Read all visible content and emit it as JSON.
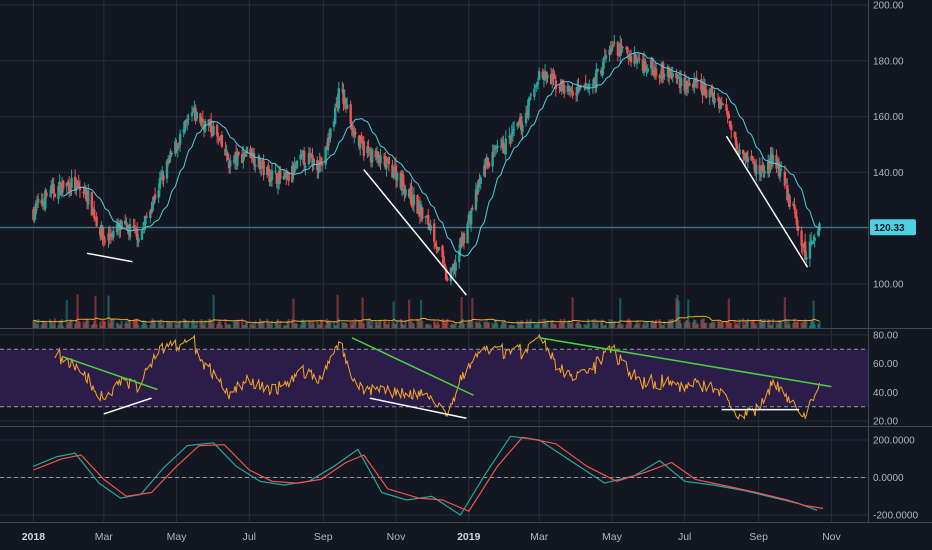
{
  "chart_data": [
    {
      "type": "candlestick",
      "panel": "price",
      "ylim": [
        92,
        200
      ],
      "yticks": [
        "200.00",
        "180.00",
        "160.00",
        "140.00",
        "120.00",
        "100.00"
      ],
      "last_price_label": "120.33",
      "last_price": 120.33,
      "series_close_approx": [
        {
          "x": "2018-01-01",
          "y": 126
        },
        {
          "x": "2018-01-15",
          "y": 133
        },
        {
          "x": "2018-02-01",
          "y": 136
        },
        {
          "x": "2018-02-15",
          "y": 132
        },
        {
          "x": "2018-03-01",
          "y": 116
        },
        {
          "x": "2018-03-15",
          "y": 120
        },
        {
          "x": "2018-04-01",
          "y": 118
        },
        {
          "x": "2018-04-15",
          "y": 134
        },
        {
          "x": "2018-05-01",
          "y": 150
        },
        {
          "x": "2018-05-15",
          "y": 161
        },
        {
          "x": "2018-06-01",
          "y": 155
        },
        {
          "x": "2018-06-15",
          "y": 143
        },
        {
          "x": "2018-07-01",
          "y": 148
        },
        {
          "x": "2018-07-15",
          "y": 140
        },
        {
          "x": "2018-08-01",
          "y": 137
        },
        {
          "x": "2018-08-15",
          "y": 145
        },
        {
          "x": "2018-09-01",
          "y": 143
        },
        {
          "x": "2018-09-15",
          "y": 170
        },
        {
          "x": "2018-10-01",
          "y": 150
        },
        {
          "x": "2018-10-15",
          "y": 145
        },
        {
          "x": "2018-11-01",
          "y": 140
        },
        {
          "x": "2018-11-15",
          "y": 130
        },
        {
          "x": "2018-12-01",
          "y": 120
        },
        {
          "x": "2018-12-15",
          "y": 100
        },
        {
          "x": "2019-01-01",
          "y": 123
        },
        {
          "x": "2019-01-15",
          "y": 143
        },
        {
          "x": "2019-02-01",
          "y": 150
        },
        {
          "x": "2019-02-15",
          "y": 158
        },
        {
          "x": "2019-03-01",
          "y": 175
        },
        {
          "x": "2019-03-15",
          "y": 172
        },
        {
          "x": "2019-04-01",
          "y": 168
        },
        {
          "x": "2019-04-15",
          "y": 172
        },
        {
          "x": "2019-05-01",
          "y": 185
        },
        {
          "x": "2019-05-15",
          "y": 182
        },
        {
          "x": "2019-06-01",
          "y": 178
        },
        {
          "x": "2019-06-15",
          "y": 176
        },
        {
          "x": "2019-07-01",
          "y": 172
        },
        {
          "x": "2019-07-15",
          "y": 170
        },
        {
          "x": "2019-08-01",
          "y": 165
        },
        {
          "x": "2019-08-15",
          "y": 150
        },
        {
          "x": "2019-09-01",
          "y": 140
        },
        {
          "x": "2019-09-15",
          "y": 145
        },
        {
          "x": "2019-10-01",
          "y": 125
        },
        {
          "x": "2019-10-10",
          "y": 110
        },
        {
          "x": "2019-10-20",
          "y": 120
        }
      ],
      "trendlines": [
        {
          "color": "#ffffff",
          "from": {
            "x": "2018-02-15",
            "y": 111
          },
          "to": {
            "x": "2018-03-25",
            "y": 108
          }
        },
        {
          "color": "#ffffff",
          "from": {
            "x": "2018-10-05",
            "y": 141
          },
          "to": {
            "x": "2018-12-30",
            "y": 96
          }
        },
        {
          "color": "#ffffff",
          "from": {
            "x": "2019-08-05",
            "y": 153
          },
          "to": {
            "x": "2019-10-12",
            "y": 106
          }
        }
      ]
    },
    {
      "type": "line",
      "panel": "rsi",
      "ylim": [
        18,
        82
      ],
      "yticks": [
        "80.00",
        "60.00",
        "40.00",
        "20.00"
      ],
      "bands": [
        30,
        70
      ],
      "trendlines": [
        {
          "color": "#4cd137",
          "from": {
            "x": "2018-01-25",
            "y": 65
          },
          "to": {
            "x": "2018-04-15",
            "y": 42
          }
        },
        {
          "color": "#ffffff",
          "from": {
            "x": "2018-03-01",
            "y": 25
          },
          "to": {
            "x": "2018-04-10",
            "y": 36
          }
        },
        {
          "color": "#4cd137",
          "from": {
            "x": "2018-09-25",
            "y": 78
          },
          "to": {
            "x": "2019-01-05",
            "y": 38
          }
        },
        {
          "color": "#ffffff",
          "from": {
            "x": "2018-10-10",
            "y": 36
          },
          "to": {
            "x": "2018-12-30",
            "y": 22
          }
        },
        {
          "color": "#4cd137",
          "from": {
            "x": "2019-03-01",
            "y": 78
          },
          "to": {
            "x": "2019-11-01",
            "y": 44
          }
        },
        {
          "color": "#ffffff",
          "from": {
            "x": "2019-08-01",
            "y": 28
          },
          "to": {
            "x": "2019-10-05",
            "y": 28
          }
        }
      ]
    },
    {
      "type": "line",
      "panel": "oscillator",
      "ylim": [
        -225,
        225
      ],
      "yticks": [
        "200.0000",
        "0.0000",
        "-200.0000"
      ],
      "series": [
        {
          "color": "#26a69a",
          "values": [
            {
              "x": "2018-01-01",
              "y": 60
            },
            {
              "x": "2018-01-20",
              "y": 110
            },
            {
              "x": "2018-02-05",
              "y": 130
            },
            {
              "x": "2018-02-25",
              "y": -30
            },
            {
              "x": "2018-03-15",
              "y": -110
            },
            {
              "x": "2018-04-01",
              "y": -90
            },
            {
              "x": "2018-04-20",
              "y": 50
            },
            {
              "x": "2018-05-10",
              "y": 170
            },
            {
              "x": "2018-06-01",
              "y": 185
            },
            {
              "x": "2018-06-20",
              "y": 60
            },
            {
              "x": "2018-07-10",
              "y": -20
            },
            {
              "x": "2018-07-30",
              "y": -40
            },
            {
              "x": "2018-08-20",
              "y": -20
            },
            {
              "x": "2018-09-10",
              "y": 60
            },
            {
              "x": "2018-09-30",
              "y": 150
            },
            {
              "x": "2018-10-20",
              "y": -80
            },
            {
              "x": "2018-11-10",
              "y": -120
            },
            {
              "x": "2018-12-01",
              "y": -100
            },
            {
              "x": "2018-12-25",
              "y": -200
            },
            {
              "x": "2019-01-15",
              "y": 20
            },
            {
              "x": "2019-02-05",
              "y": 220
            },
            {
              "x": "2019-03-01",
              "y": 200
            },
            {
              "x": "2019-04-01",
              "y": 70
            },
            {
              "x": "2019-04-25",
              "y": -30
            },
            {
              "x": "2019-05-20",
              "y": 10
            },
            {
              "x": "2019-06-10",
              "y": 90
            },
            {
              "x": "2019-07-01",
              "y": -20
            },
            {
              "x": "2019-07-25",
              "y": -40
            },
            {
              "x": "2019-08-20",
              "y": -70
            },
            {
              "x": "2019-09-15",
              "y": -110
            },
            {
              "x": "2019-10-05",
              "y": -140
            },
            {
              "x": "2019-10-20",
              "y": -175
            }
          ]
        },
        {
          "color": "#ef5350",
          "values": [
            {
              "x": "2018-01-01",
              "y": 40
            },
            {
              "x": "2018-01-25",
              "y": 100
            },
            {
              "x": "2018-02-10",
              "y": 120
            },
            {
              "x": "2018-03-01",
              "y": -10
            },
            {
              "x": "2018-03-20",
              "y": -100
            },
            {
              "x": "2018-04-10",
              "y": -80
            },
            {
              "x": "2018-05-01",
              "y": 60
            },
            {
              "x": "2018-05-20",
              "y": 170
            },
            {
              "x": "2018-06-10",
              "y": 175
            },
            {
              "x": "2018-07-01",
              "y": 40
            },
            {
              "x": "2018-07-20",
              "y": -20
            },
            {
              "x": "2018-08-10",
              "y": -30
            },
            {
              "x": "2018-08-30",
              "y": -10
            },
            {
              "x": "2018-09-20",
              "y": 80
            },
            {
              "x": "2018-10-05",
              "y": 120
            },
            {
              "x": "2018-10-25",
              "y": -60
            },
            {
              "x": "2018-11-20",
              "y": -110
            },
            {
              "x": "2018-12-10",
              "y": -120
            },
            {
              "x": "2019-01-01",
              "y": -180
            },
            {
              "x": "2019-01-25",
              "y": 60
            },
            {
              "x": "2019-02-15",
              "y": 215
            },
            {
              "x": "2019-03-15",
              "y": 180
            },
            {
              "x": "2019-04-10",
              "y": 60
            },
            {
              "x": "2019-05-05",
              "y": -20
            },
            {
              "x": "2019-05-30",
              "y": 30
            },
            {
              "x": "2019-06-20",
              "y": 80
            },
            {
              "x": "2019-07-10",
              "y": -10
            },
            {
              "x": "2019-08-01",
              "y": -40
            },
            {
              "x": "2019-08-30",
              "y": -80
            },
            {
              "x": "2019-09-25",
              "y": -120
            },
            {
              "x": "2019-10-10",
              "y": -150
            },
            {
              "x": "2019-10-25",
              "y": -165
            }
          ]
        }
      ]
    }
  ],
  "x_axis": {
    "ticks": [
      {
        "label": "2018",
        "x": "2018-01-01",
        "bold": true
      },
      {
        "label": "Mar",
        "x": "2018-03-01",
        "bold": false
      },
      {
        "label": "May",
        "x": "2018-05-01",
        "bold": false
      },
      {
        "label": "Jul",
        "x": "2018-07-01",
        "bold": false
      },
      {
        "label": "Sep",
        "x": "2018-09-01",
        "bold": false
      },
      {
        "label": "Nov",
        "x": "2018-11-01",
        "bold": false
      },
      {
        "label": "2019",
        "x": "2019-01-01",
        "bold": true
      },
      {
        "label": "Mar",
        "x": "2019-03-01",
        "bold": false
      },
      {
        "label": "May",
        "x": "2019-05-01",
        "bold": false
      },
      {
        "label": "Jul",
        "x": "2019-07-01",
        "bold": false
      },
      {
        "label": "Sep",
        "x": "2019-09-01",
        "bold": false
      },
      {
        "label": "Nov",
        "x": "2019-11-01",
        "bold": false
      }
    ]
  },
  "colors": {
    "background": "#131722",
    "grid": "#2a2e39",
    "up": "#26a69a",
    "down": "#ef5350",
    "ma": "#4dd0e1",
    "rsi_line": "#f5a623",
    "rsi_band": "#2b1c4a",
    "price_line": "#4dd0e1",
    "volume_ma": "#f5a623"
  }
}
